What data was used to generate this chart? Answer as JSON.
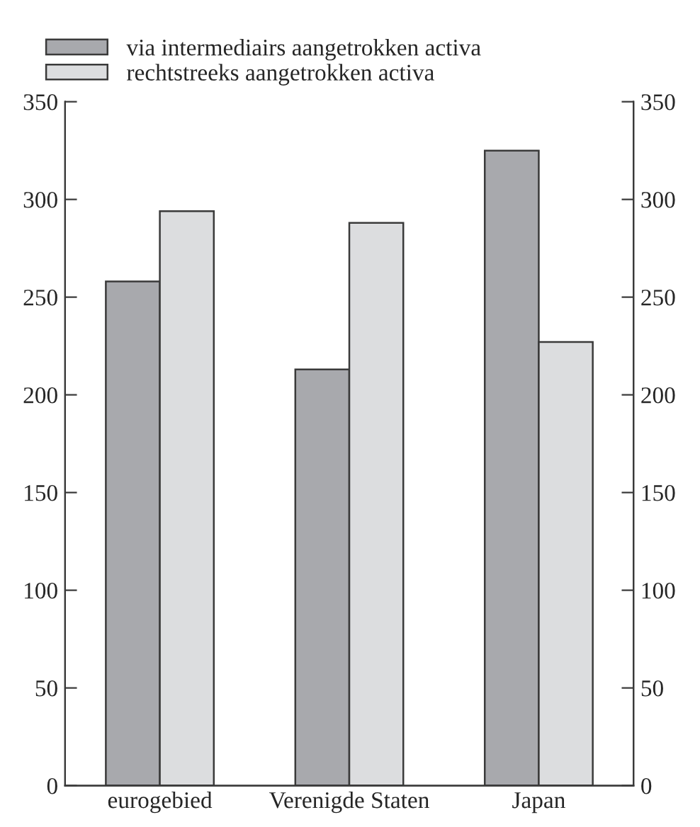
{
  "chart_data": {
    "type": "bar",
    "categories": [
      "eurogebied",
      "Verenigde Staten",
      "Japan"
    ],
    "series": [
      {
        "name": "via intermediairs aangetrokken activa",
        "color": "#a8a9ad",
        "values": [
          258,
          213,
          325
        ]
      },
      {
        "name": "rechtstreeks aangetrokken activa",
        "color": "#dcdddf",
        "values": [
          294,
          288,
          227
        ]
      }
    ],
    "ylim": [
      0,
      350
    ],
    "yticks": [
      0,
      50,
      100,
      150,
      200,
      250,
      300,
      350
    ],
    "y2lim": [
      0,
      350
    ],
    "y2ticks": [
      0,
      50,
      100,
      150,
      200,
      250,
      300,
      350
    ],
    "grid": false,
    "legend": "top"
  }
}
